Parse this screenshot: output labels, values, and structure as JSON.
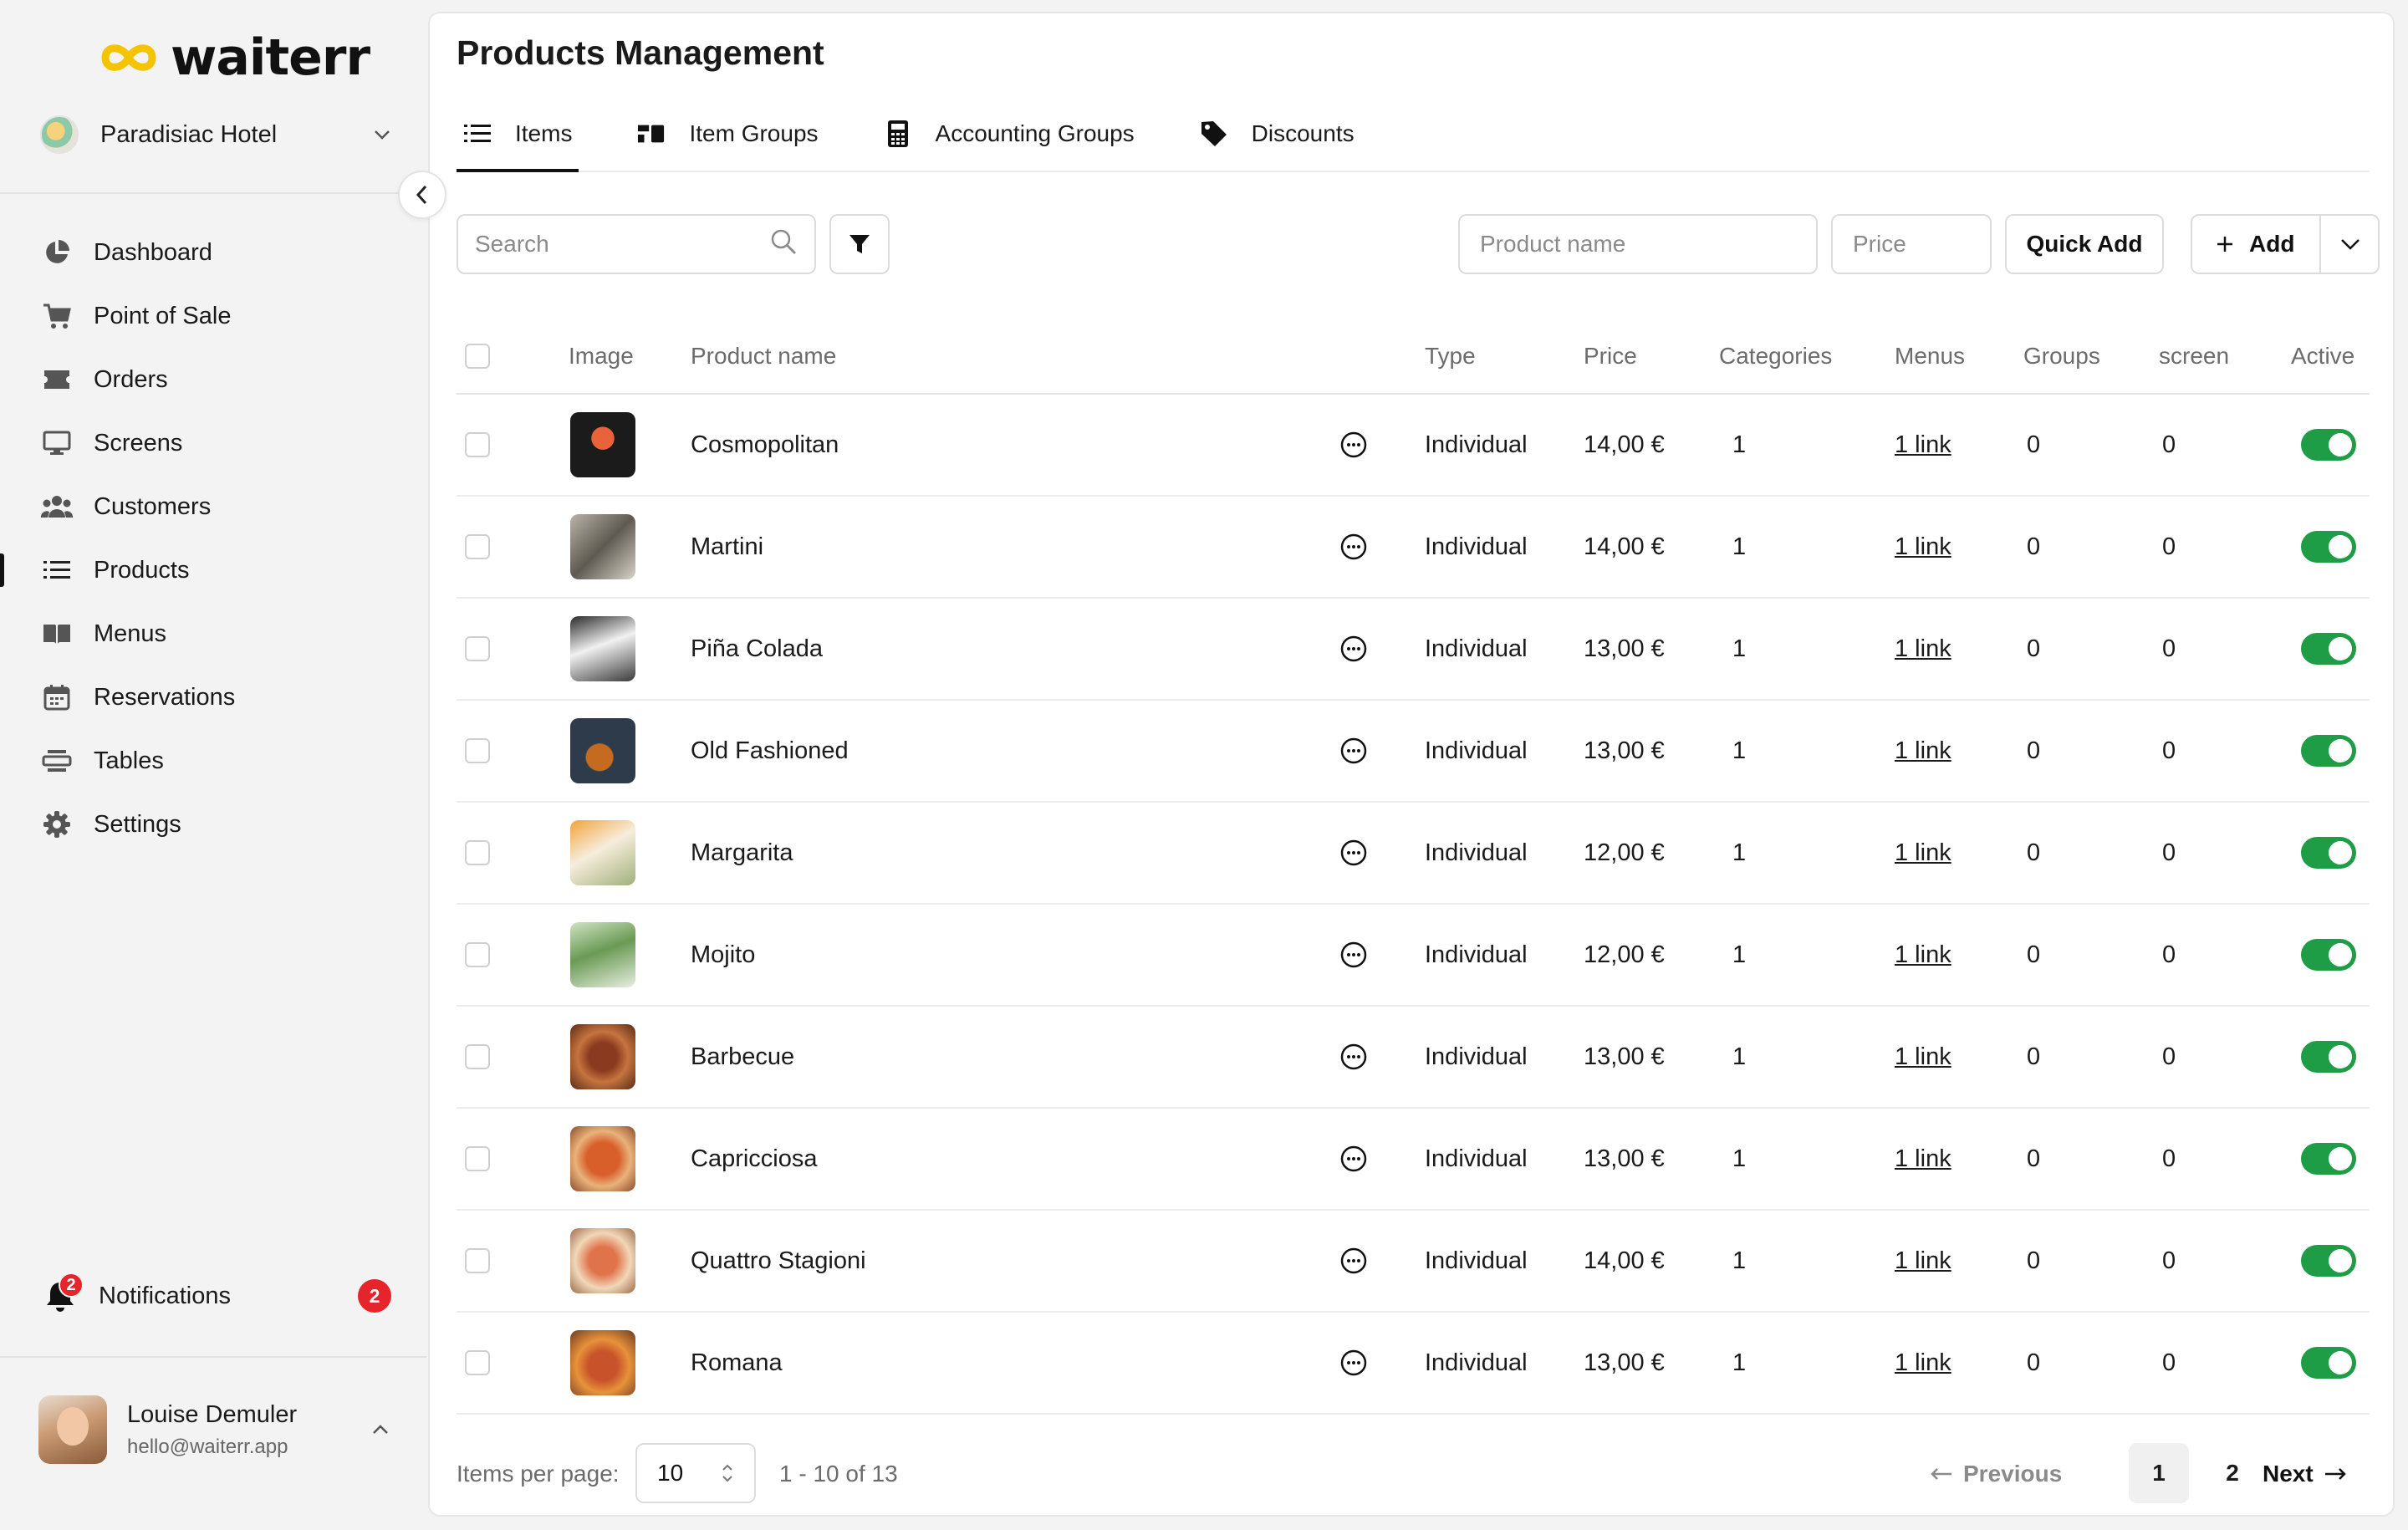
{
  "brand": {
    "name": "waiterr",
    "accent": "#f5c400"
  },
  "hotel": {
    "name": "Paradisiac Hotel"
  },
  "nav": [
    {
      "label": "Dashboard",
      "icon": "pie-chart-icon"
    },
    {
      "label": "Point of Sale",
      "icon": "cart-icon"
    },
    {
      "label": "Orders",
      "icon": "ticket-icon"
    },
    {
      "label": "Screens",
      "icon": "monitor-icon"
    },
    {
      "label": "Customers",
      "icon": "users-icon"
    },
    {
      "label": "Products",
      "icon": "list-icon",
      "active": true
    },
    {
      "label": "Menus",
      "icon": "book-icon"
    },
    {
      "label": "Reservations",
      "icon": "calendar-icon"
    },
    {
      "label": "Tables",
      "icon": "table-icon"
    },
    {
      "label": "Settings",
      "icon": "gear-icon"
    }
  ],
  "notifications": {
    "label": "Notifications",
    "count": "2"
  },
  "user": {
    "name": "Louise Demuler",
    "email": "hello@waiterr.app"
  },
  "page": {
    "title": "Products Management"
  },
  "tabs": [
    {
      "label": "Items",
      "icon": "list-icon",
      "active": true
    },
    {
      "label": "Item Groups",
      "icon": "item-groups-icon"
    },
    {
      "label": "Accounting Groups",
      "icon": "calculator-icon"
    },
    {
      "label": "Discounts",
      "icon": "tag-icon"
    }
  ],
  "toolbar": {
    "search_placeholder": "Search",
    "product_name_placeholder": "Product name",
    "price_placeholder": "Price",
    "quick_add_label": "Quick Add",
    "add_label": "Add"
  },
  "table": {
    "columns": [
      "Image",
      "Product name",
      "Type",
      "Price",
      "Categories",
      "Menus",
      "Groups",
      "screen",
      "Active"
    ],
    "rows": [
      {
        "name": "Cosmopolitan",
        "type": "Individual",
        "price": "14,00 €",
        "categories": "1",
        "menus": "1 link",
        "groups": "0",
        "screen": "0",
        "active": true
      },
      {
        "name": "Martini",
        "type": "Individual",
        "price": "14,00 €",
        "categories": "1",
        "menus": "1 link",
        "groups": "0",
        "screen": "0",
        "active": true
      },
      {
        "name": "Piña Colada",
        "type": "Individual",
        "price": "13,00 €",
        "categories": "1",
        "menus": "1 link",
        "groups": "0",
        "screen": "0",
        "active": true
      },
      {
        "name": "Old Fashioned",
        "type": "Individual",
        "price": "13,00 €",
        "categories": "1",
        "menus": "1 link",
        "groups": "0",
        "screen": "0",
        "active": true
      },
      {
        "name": "Margarita",
        "type": "Individual",
        "price": "12,00 €",
        "categories": "1",
        "menus": "1 link",
        "groups": "0",
        "screen": "0",
        "active": true
      },
      {
        "name": "Mojito",
        "type": "Individual",
        "price": "12,00 €",
        "categories": "1",
        "menus": "1 link",
        "groups": "0",
        "screen": "0",
        "active": true
      },
      {
        "name": "Barbecue",
        "type": "Individual",
        "price": "13,00 €",
        "categories": "1",
        "menus": "1 link",
        "groups": "0",
        "screen": "0",
        "active": true
      },
      {
        "name": "Capricciosa",
        "type": "Individual",
        "price": "13,00 €",
        "categories": "1",
        "menus": "1 link",
        "groups": "0",
        "screen": "0",
        "active": true
      },
      {
        "name": "Quattro Stagioni",
        "type": "Individual",
        "price": "14,00 €",
        "categories": "1",
        "menus": "1 link",
        "groups": "0",
        "screen": "0",
        "active": true
      },
      {
        "name": "Romana",
        "type": "Individual",
        "price": "13,00 €",
        "categories": "1",
        "menus": "1 link",
        "groups": "0",
        "screen": "0",
        "active": true
      }
    ]
  },
  "pagination": {
    "items_per_page_label": "Items per page:",
    "items_per_page": "10",
    "range": "1 - 10 of 13",
    "previous_label": "Previous",
    "next_label": "Next",
    "pages": [
      "1",
      "2"
    ],
    "current_page": "1"
  }
}
